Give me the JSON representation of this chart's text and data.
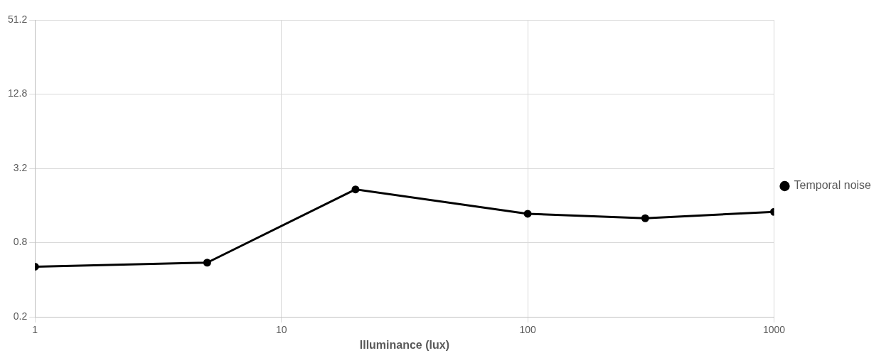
{
  "chart_data": {
    "type": "line",
    "xlabel": "Illuminance (lux)",
    "x": [
      1,
      5,
      20,
      100,
      300,
      1000
    ],
    "series": [
      {
        "name": "Temporal noise",
        "color": "#000000",
        "values": [
          0.51,
          0.55,
          2.16,
          1.37,
          1.26,
          1.42
        ]
      }
    ],
    "log": "xy",
    "xlim": [
      1,
      1000
    ],
    "xticks": [
      1,
      10,
      100,
      1000
    ],
    "ylim": [
      0.2,
      51.2
    ],
    "yticks": [
      0.2,
      0.8,
      3.2,
      12.8,
      51.2
    ],
    "grid": true,
    "legend": "right",
    "marker": "circle",
    "line_style": "solid"
  }
}
